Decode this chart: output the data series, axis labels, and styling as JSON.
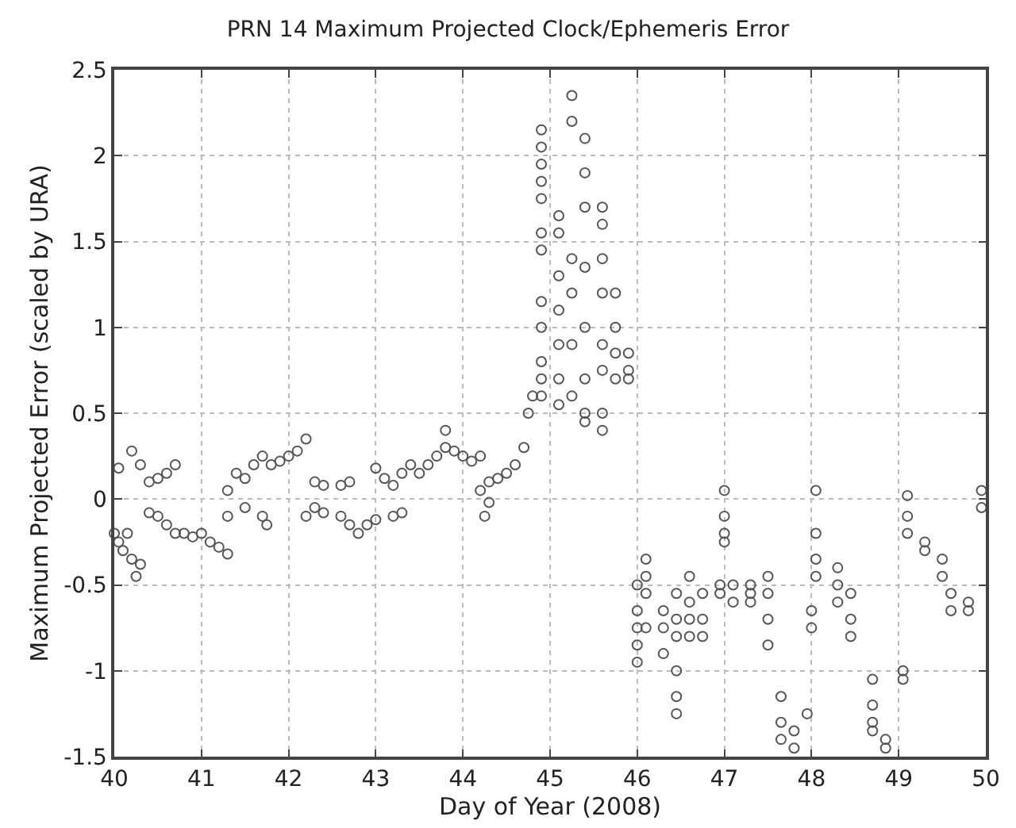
{
  "chart_data": {
    "type": "scatter",
    "title": "PRN 14 Maximum Projected Clock/Ephemeris Error",
    "xlabel": "Day of Year (2008)",
    "ylabel": "Maximum Projected Error (scaled by URA)",
    "xlim": [
      40,
      50
    ],
    "xticks": [
      40,
      41,
      42,
      43,
      44,
      45,
      46,
      47,
      48,
      49,
      50
    ],
    "ylim": [
      -1.5,
      2.5
    ],
    "yticks": [
      -1.5,
      -1,
      -0.5,
      0,
      0.5,
      1,
      1.5,
      2,
      2.5
    ],
    "grid": true,
    "marker": "circle",
    "series": [
      {
        "color": "#555555",
        "x": [
          40.0,
          40.05,
          40.1,
          40.15,
          40.2,
          40.25,
          40.3,
          40.2,
          40.3,
          40.4,
          40.5,
          40.6,
          40.7,
          40.05,
          40.4,
          40.5,
          40.6,
          40.7,
          40.8,
          40.9,
          41.0,
          41.1,
          41.2,
          41.3,
          41.3,
          41.4,
          41.5,
          41.6,
          41.7,
          41.8,
          41.9,
          42.0,
          42.1,
          42.2,
          41.5,
          41.7,
          41.3,
          41.75,
          42.2,
          42.3,
          42.4,
          42.6,
          42.7,
          42.8,
          42.9,
          43.0,
          43.2,
          43.3,
          42.3,
          42.4,
          42.6,
          42.7,
          43.0,
          43.1,
          43.2,
          43.3,
          43.4,
          43.5,
          43.6,
          43.7,
          43.8,
          43.9,
          44.0,
          44.1,
          44.2,
          43.8,
          44.2,
          44.3,
          44.4,
          44.5,
          44.6,
          44.7,
          44.75,
          44.8,
          44.25,
          44.3,
          44.9,
          44.9,
          44.9,
          44.9,
          44.9,
          44.9,
          44.9,
          44.9,
          44.9,
          44.9,
          44.9,
          44.9,
          45.1,
          45.1,
          45.1,
          45.1,
          45.1,
          45.1,
          45.1,
          45.25,
          45.25,
          45.25,
          45.25,
          45.25,
          45.25,
          45.4,
          45.4,
          45.4,
          45.4,
          45.4,
          45.4,
          45.4,
          45.4,
          45.6,
          45.6,
          45.6,
          45.6,
          45.6,
          45.6,
          45.6,
          45.6,
          45.75,
          45.75,
          45.75,
          45.75,
          45.9,
          45.9,
          45.9,
          46.0,
          46.0,
          46.0,
          46.0,
          46.0,
          46.1,
          46.1,
          46.1,
          46.1,
          46.3,
          46.3,
          46.3,
          46.45,
          46.45,
          46.45,
          46.45,
          46.45,
          46.45,
          46.6,
          46.6,
          46.6,
          46.6,
          46.75,
          46.75,
          46.75,
          47.0,
          47.0,
          47.0,
          47.0,
          47.1,
          47.1,
          46.95,
          46.95,
          47.3,
          47.3,
          47.3,
          47.5,
          47.5,
          47.5,
          47.5,
          47.65,
          47.65,
          47.65,
          47.8,
          47.8,
          47.95,
          48.05,
          48.05,
          48.05,
          48.05,
          48.0,
          48.0,
          48.3,
          48.3,
          48.3,
          48.45,
          48.45,
          48.45,
          48.7,
          48.7,
          48.7,
          48.7,
          48.85,
          48.85,
          49.05,
          49.05,
          49.1,
          49.1,
          49.1,
          49.3,
          49.3,
          49.5,
          49.5,
          49.6,
          49.6,
          49.8,
          49.8,
          49.95,
          49.95
        ],
        "values": [
          -0.2,
          -0.25,
          -0.3,
          -0.2,
          -0.35,
          -0.45,
          -0.38,
          0.28,
          0.2,
          0.1,
          0.12,
          0.15,
          0.2,
          0.18,
          -0.08,
          -0.1,
          -0.15,
          -0.2,
          -0.2,
          -0.22,
          -0.2,
          -0.25,
          -0.28,
          -0.32,
          0.05,
          0.15,
          0.12,
          0.2,
          0.25,
          0.2,
          0.22,
          0.25,
          0.28,
          0.35,
          -0.05,
          -0.1,
          -0.1,
          -0.15,
          -0.1,
          -0.05,
          -0.08,
          -0.1,
          -0.15,
          -0.2,
          -0.15,
          -0.12,
          -0.1,
          -0.08,
          0.1,
          0.08,
          0.08,
          0.1,
          0.18,
          0.12,
          0.08,
          0.15,
          0.2,
          0.15,
          0.2,
          0.25,
          0.3,
          0.28,
          0.25,
          0.22,
          0.25,
          0.4,
          0.05,
          0.1,
          0.12,
          0.15,
          0.2,
          0.3,
          0.5,
          0.6,
          -0.1,
          -0.02,
          2.15,
          2.05,
          1.95,
          1.85,
          1.75,
          1.55,
          1.45,
          1.15,
          1.0,
          0.8,
          0.7,
          0.6,
          1.65,
          1.55,
          1.3,
          1.1,
          0.9,
          0.7,
          0.55,
          2.35,
          2.2,
          1.4,
          1.2,
          0.9,
          0.6,
          2.1,
          1.9,
          1.7,
          1.35,
          1.0,
          0.7,
          0.5,
          0.45,
          1.7,
          1.6,
          1.4,
          1.2,
          0.9,
          0.75,
          0.5,
          0.4,
          1.2,
          1.0,
          0.85,
          0.7,
          0.85,
          0.75,
          0.7,
          -0.5,
          -0.65,
          -0.75,
          -0.85,
          -0.95,
          -0.35,
          -0.45,
          -0.55,
          -0.75,
          -0.65,
          -0.75,
          -0.9,
          -0.55,
          -0.7,
          -0.8,
          -1.0,
          -1.15,
          -1.25,
          -0.45,
          -0.6,
          -0.7,
          -0.8,
          -0.55,
          -0.7,
          -0.8,
          0.05,
          -0.1,
          -0.2,
          -0.25,
          -0.5,
          -0.6,
          -0.5,
          -0.55,
          -0.5,
          -0.55,
          -0.6,
          -0.45,
          -0.55,
          -0.7,
          -0.85,
          -1.15,
          -1.3,
          -1.4,
          -1.45,
          -1.35,
          -1.25,
          0.05,
          -0.2,
          -0.35,
          -0.45,
          -0.65,
          -0.75,
          -0.4,
          -0.5,
          -0.6,
          -0.55,
          -0.7,
          -0.8,
          -1.05,
          -1.2,
          -1.3,
          -1.35,
          -1.4,
          -1.45,
          -1.0,
          -1.05,
          0.02,
          -0.1,
          -0.2,
          -0.25,
          -0.3,
          -0.35,
          -0.45,
          -0.55,
          -0.65,
          -0.6,
          -0.65,
          0.05,
          -0.05
        ]
      }
    ]
  }
}
